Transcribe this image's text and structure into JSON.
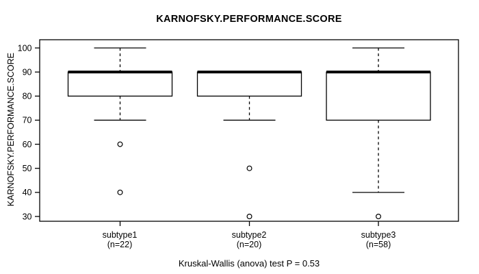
{
  "title": "KARNOFSKY.PERFORMANCE.SCORE",
  "footer": "Kruskal-Wallis (anova) test P = 0.53",
  "chart_data": {
    "type": "boxplot",
    "title": "KARNOFSKY.PERFORMANCE.SCORE",
    "ylabel": "KARNOFSKY.PERFORMANCE.SCORE",
    "xlabel": "",
    "ylim": [
      27.5,
      103.5
    ],
    "yticks": [
      30,
      40,
      50,
      60,
      70,
      80,
      90,
      100
    ],
    "grid": false,
    "legend": null,
    "annotation": "Kruskal-Wallis (anova) test P = 0.53",
    "groups": [
      {
        "label": "subtype1",
        "n_label": "(n=22)",
        "n": 22,
        "q1": 80,
        "median": 90,
        "q3": 90,
        "whisker_low": 70,
        "whisker_high": 100,
        "outliers": [
          60,
          40
        ]
      },
      {
        "label": "subtype2",
        "n_label": "(n=20)",
        "n": 20,
        "q1": 80,
        "median": 90,
        "q3": 90,
        "whisker_low": 70,
        "whisker_high": 90,
        "outliers": [
          50,
          30
        ]
      },
      {
        "label": "subtype3",
        "n_label": "(n=58)",
        "n": 58,
        "q1": 70,
        "median": 90,
        "q3": 90,
        "whisker_low": 40,
        "whisker_high": 100,
        "outliers": [
          30
        ]
      }
    ],
    "colors": {
      "line": "#000000",
      "box_fill": "#ffffff",
      "background": "#ffffff"
    }
  }
}
